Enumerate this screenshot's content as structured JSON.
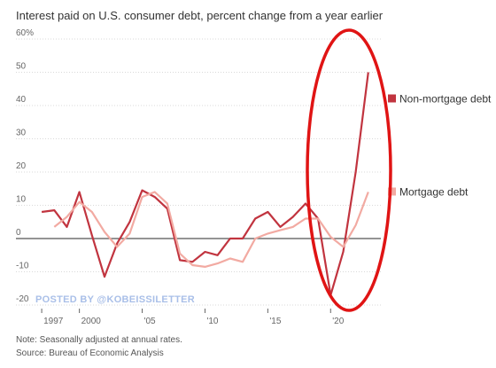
{
  "chart_data": {
    "type": "line",
    "title": "Interest paid on U.S. consumer debt, percent change from a year earlier",
    "xlabel": "",
    "ylabel": "",
    "x": [
      1997,
      1998,
      1999,
      2000,
      2001,
      2002,
      2003,
      2004,
      2005,
      2006,
      2007,
      2008,
      2009,
      2010,
      2011,
      2012,
      2013,
      2014,
      2015,
      2016,
      2017,
      2018,
      2019,
      2020,
      2021,
      2022,
      2023
    ],
    "xlim": [
      1996.5,
      2024
    ],
    "ylim": [
      -20,
      60
    ],
    "x_ticks": [
      {
        "value": 1997,
        "label": "1997"
      },
      {
        "value": 2000,
        "label": "2000"
      },
      {
        "value": 2005,
        "label": "'05"
      },
      {
        "value": 2010,
        "label": "'10"
      },
      {
        "value": 2015,
        "label": "'15"
      },
      {
        "value": 2020,
        "label": "'20"
      }
    ],
    "y_ticks": [
      {
        "value": 60,
        "label": "60%"
      },
      {
        "value": 50,
        "label": "50"
      },
      {
        "value": 40,
        "label": "40"
      },
      {
        "value": 30,
        "label": "30"
      },
      {
        "value": 20,
        "label": "20"
      },
      {
        "value": 10,
        "label": "10"
      },
      {
        "value": 0,
        "label": "0"
      },
      {
        "value": -10,
        "label": "-10"
      },
      {
        "value": -20,
        "label": "-20"
      }
    ],
    "grid": true,
    "series": [
      {
        "name": "Non-mortgage debt",
        "color": "#c1343f",
        "values": [
          8,
          8.5,
          3.5,
          14,
          1,
          -11.5,
          -1.5,
          5,
          14.5,
          12.5,
          9,
          -6.5,
          -7,
          -4,
          -5,
          0,
          0,
          6,
          8,
          3.5,
          6.5,
          10.5,
          6,
          -17,
          -4,
          20,
          50
        ]
      },
      {
        "name": "Mortgage debt",
        "color": "#f2aaa2",
        "values": [
          null,
          3.5,
          6.5,
          11,
          8,
          2,
          -2.5,
          1.5,
          12.5,
          14,
          10.5,
          -4.5,
          -8,
          -8.5,
          -7.5,
          -6,
          -7,
          0,
          1.5,
          2.5,
          3.5,
          6,
          6,
          0.5,
          -2.5,
          4,
          14
        ]
      }
    ],
    "legend_placement": "right-of-line-ends",
    "notes": [
      "Note: Seasonally adjusted at annual rates.",
      "Source: Bureau of Economic Analysis"
    ],
    "watermark": "POSTED BY @KOBEISSILETTER",
    "annotation": {
      "type": "ellipse-highlight",
      "color": "#e01414",
      "years": [
        2018,
        2023
      ]
    }
  }
}
